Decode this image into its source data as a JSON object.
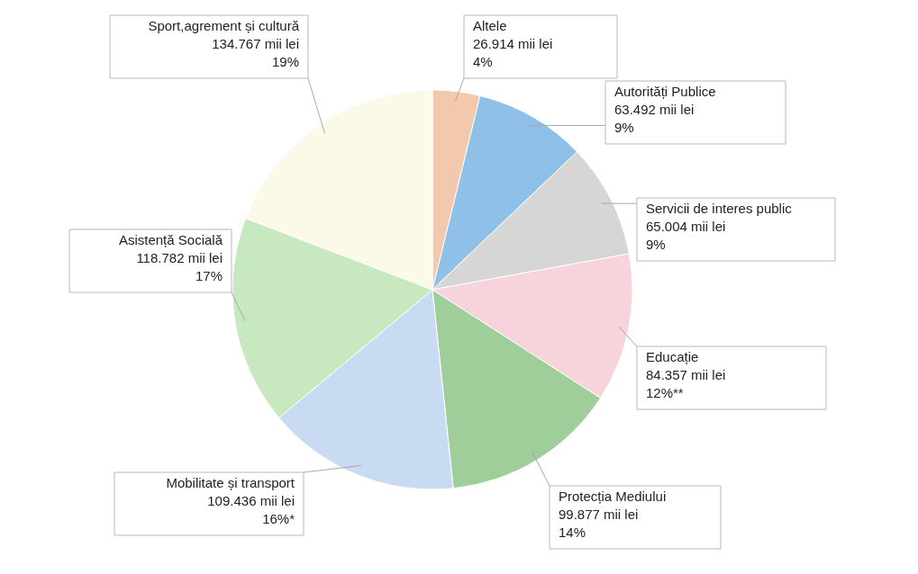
{
  "chart_data": {
    "type": "pie",
    "categories": [
      "Altele",
      "Autorități Publice",
      "Servicii de interes public",
      "Educație",
      "Protecția Mediului",
      "Mobilitate și transport",
      "Asistență Socială",
      "Sport,agrement și cultură"
    ],
    "values": [
      26.914,
      63.492,
      65.004,
      84.357,
      99.877,
      109.436,
      118.782,
      134.767
    ],
    "colors": [
      "#f2c9ad",
      "#8fc0e8",
      "#d6d6d6",
      "#f7d4db",
      "#9fce9b",
      "#c8dbf2",
      "#c8e8bf",
      "#fbfae8"
    ],
    "value_labels": [
      "26.914 mii lei\n4%",
      "63.492 mii lei\n9%",
      "65.004 mii lei\n9%",
      "84.357 mii lei\n12%**",
      "99.877 mii lei\n14%",
      "109.436 mii lei\n16%*",
      "118.782 mii lei\n17%",
      "134.767 mii lei\n19%"
    ]
  }
}
